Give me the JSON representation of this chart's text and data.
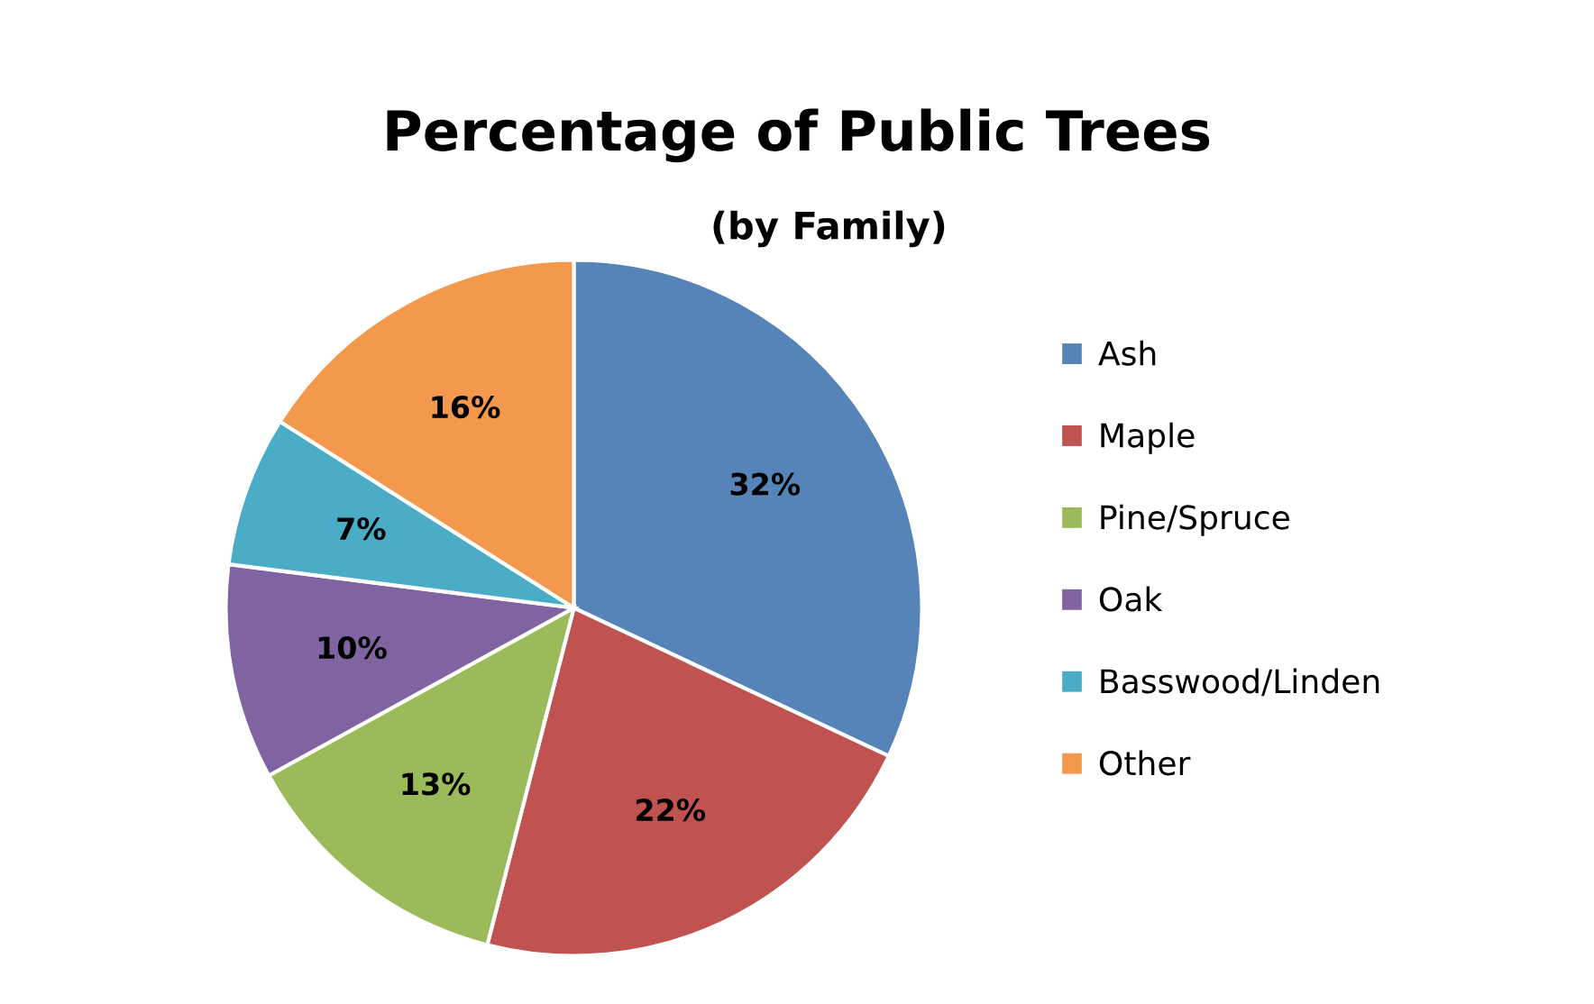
{
  "chart_data": {
    "type": "pie",
    "title": "Percentage of Public Trees",
    "subtitle": "(by Family)",
    "categories": [
      "Ash",
      "Maple",
      "Pine/Spruce",
      "Oak",
      "Basswood/Linden",
      "Other"
    ],
    "values": [
      32,
      22,
      13,
      10,
      7,
      16
    ],
    "value_labels": [
      "32%",
      "22%",
      "13%",
      "10%",
      "7%",
      "16%"
    ],
    "colors": [
      "#5784b8",
      "#c0534f",
      "#9bbb5b",
      "#8064a2",
      "#4bacc6",
      "#f3984d"
    ],
    "legend": "right"
  }
}
